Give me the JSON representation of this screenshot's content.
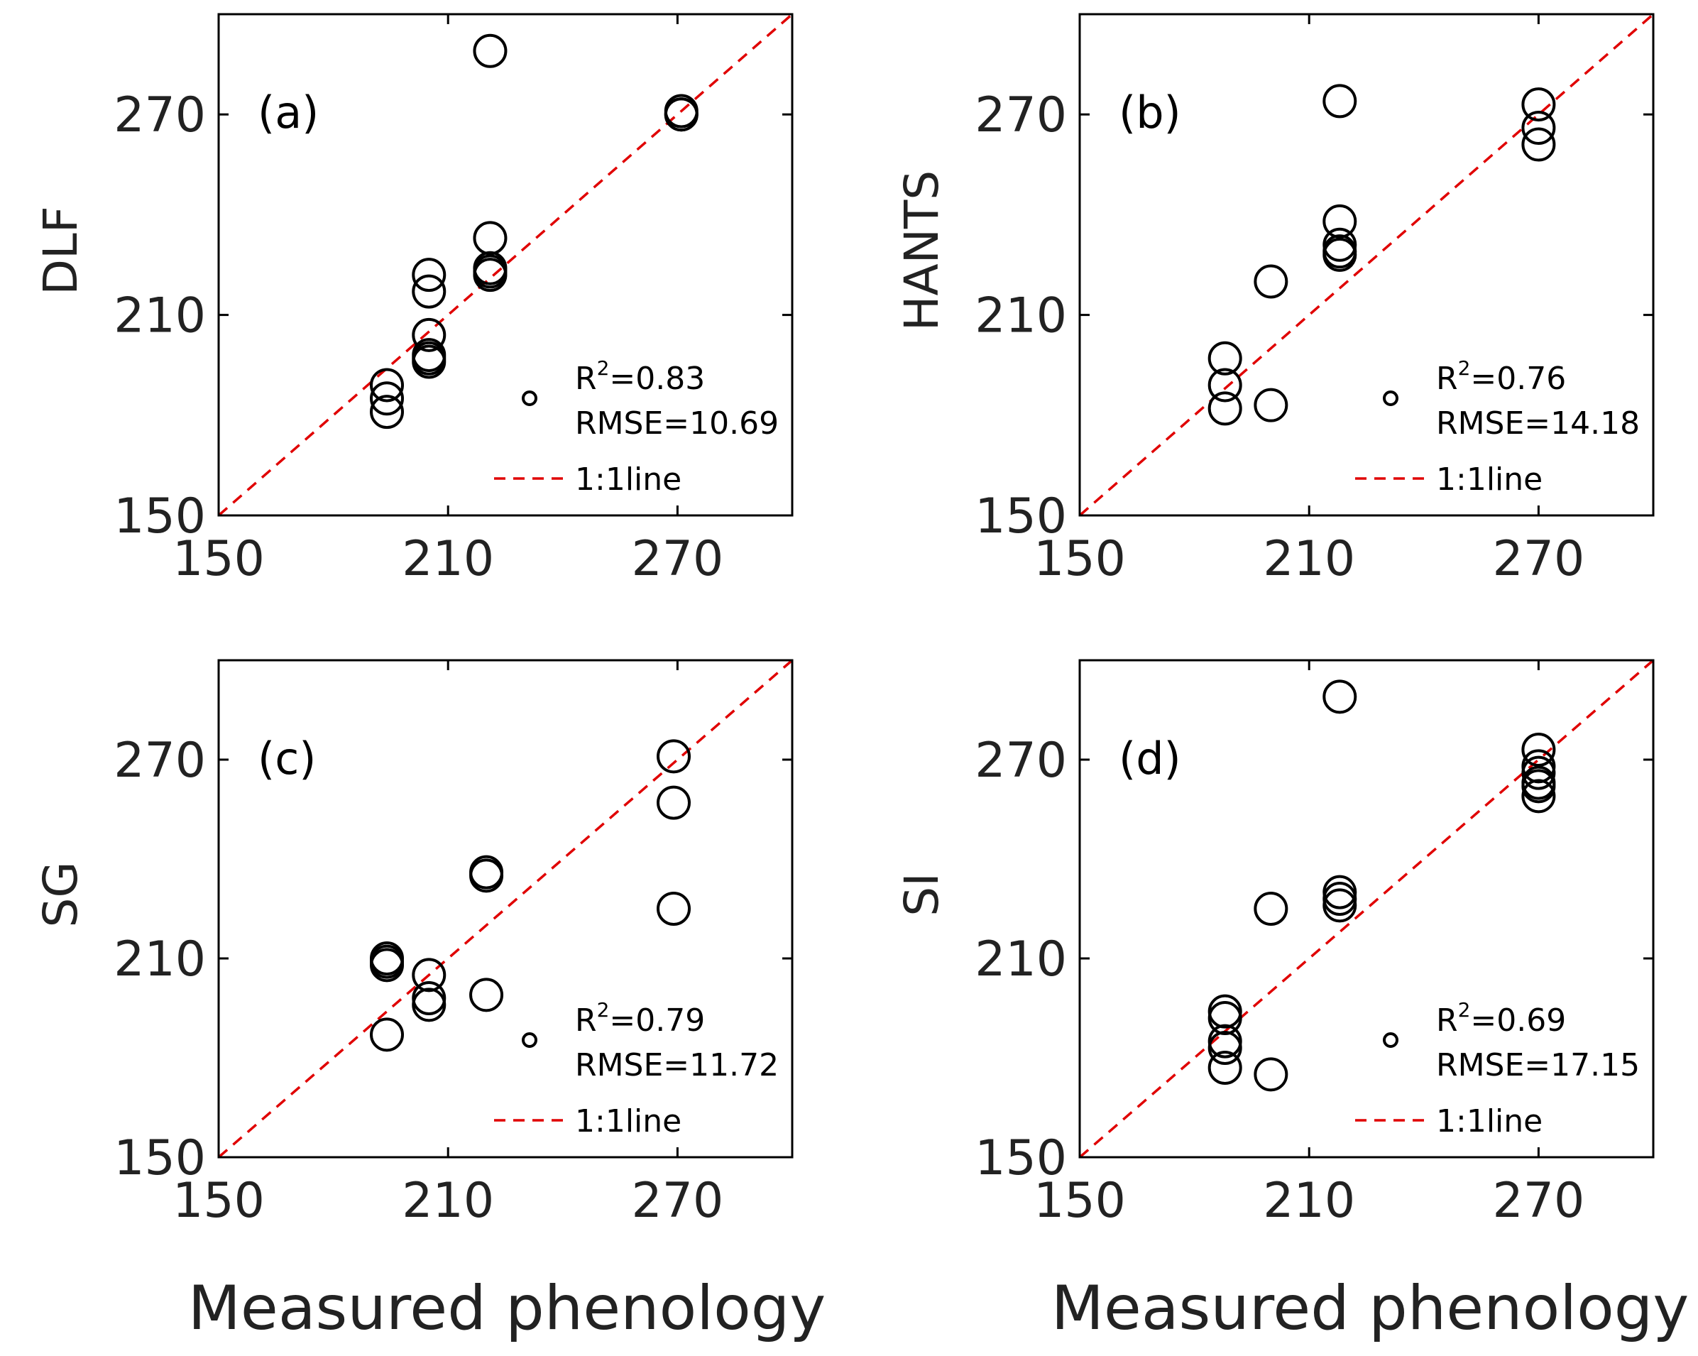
{
  "figure": {
    "xlabel": "Measured phenology",
    "line_color": "#e00000",
    "marker_color": "#000000"
  },
  "chart_data": [
    {
      "type": "scatter",
      "panel": "(a)",
      "ylabel": "DLF",
      "xlim": [
        150,
        300
      ],
      "ylim": [
        150,
        300
      ],
      "xticks": [
        150,
        210,
        270
      ],
      "yticks": [
        150,
        210,
        270
      ],
      "x": [
        194,
        194,
        194,
        205,
        205,
        205,
        205,
        205,
        205,
        221,
        221,
        221,
        221,
        221,
        271,
        271,
        271
      ],
      "y": [
        189,
        185,
        181,
        222,
        217,
        204,
        197,
        198,
        196,
        233,
        223,
        224,
        222,
        289,
        271,
        270,
        270
      ],
      "legend": {
        "r2_label": "R",
        "r2_sup": "2",
        "r2_value": "=0.83",
        "rmse": "RMSE=10.69",
        "line_label": "1:1line"
      }
    },
    {
      "type": "scatter",
      "panel": "(b)",
      "ylabel": "HANTS",
      "xlim": [
        150,
        300
      ],
      "ylim": [
        150,
        300
      ],
      "xticks": [
        150,
        210,
        270
      ],
      "yticks": [
        150,
        210,
        270
      ],
      "x": [
        188,
        188,
        188,
        200,
        200,
        218,
        218,
        218,
        218,
        218,
        270,
        270,
        270
      ],
      "y": [
        197,
        189,
        182,
        220,
        183,
        274,
        238,
        231,
        229,
        228,
        273,
        266,
        261
      ],
      "legend": {
        "r2_label": "R",
        "r2_sup": "2",
        "r2_value": "=0.76",
        "rmse": "RMSE=14.18",
        "line_label": "1:1line"
      }
    },
    {
      "type": "scatter",
      "panel": "(c)",
      "ylabel": "SG",
      "xlim": [
        150,
        300
      ],
      "ylim": [
        150,
        300
      ],
      "xticks": [
        150,
        210,
        270
      ],
      "yticks": [
        150,
        210,
        270
      ],
      "x": [
        194,
        194,
        194,
        194,
        205,
        205,
        205,
        220,
        220,
        220,
        269,
        269,
        269
      ],
      "y": [
        210,
        208,
        187,
        209,
        205,
        198,
        196,
        236,
        235,
        199,
        271,
        257,
        225
      ],
      "legend": {
        "r2_label": "R",
        "r2_sup": "2",
        "r2_value": "=0.79",
        "rmse": "RMSE=11.72",
        "line_label": "1:1line"
      }
    },
    {
      "type": "scatter",
      "panel": "(d)",
      "ylabel": "SI",
      "xlim": [
        150,
        300
      ],
      "ylim": [
        150,
        300
      ],
      "xticks": [
        150,
        210,
        270
      ],
      "yticks": [
        150,
        210,
        270
      ],
      "x": [
        188,
        188,
        188,
        188,
        188,
        200,
        200,
        218,
        218,
        218,
        218,
        270,
        270,
        270,
        270,
        270,
        270
      ],
      "y": [
        194,
        192,
        185,
        183,
        177,
        225,
        175,
        289,
        230,
        228,
        226,
        273,
        268,
        266,
        263,
        262,
        259
      ],
      "legend": {
        "r2_label": "R",
        "r2_sup": "2",
        "r2_value": "=0.69",
        "rmse": "RMSE=17.15",
        "line_label": "1:1line"
      }
    }
  ]
}
